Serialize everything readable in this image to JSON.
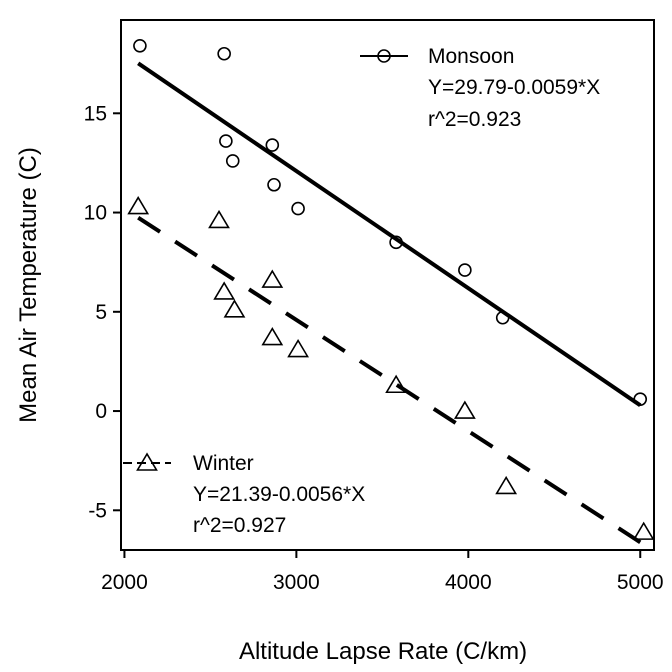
{
  "chart_data": {
    "type": "scatter",
    "xlabel": "Altitude Lapse Rate (C/km)",
    "ylabel": "Mean Air Temperature (C)",
    "xlim": [
      1980,
      5080
    ],
    "ylim": [
      -7.0,
      19.7
    ],
    "x_ticks": [
      2000,
      3000,
      4000,
      5000
    ],
    "y_ticks": [
      -5,
      0,
      5,
      10,
      15
    ],
    "legend_placement": [
      "top-right",
      "bottom-left"
    ],
    "grid": false,
    "series": [
      {
        "name": "Monsoon",
        "marker": "circle",
        "line_style": "solid",
        "color": "#000000",
        "fit": {
          "intercept": 29.79,
          "slope": -0.0059,
          "x_range": [
            2080,
            5000
          ]
        },
        "equation": "Y=29.79-0.0059*X",
        "r2": "r^2=0.923",
        "points": [
          {
            "x": 2090,
            "y": 18.4
          },
          {
            "x": 2580,
            "y": 18.0
          },
          {
            "x": 2590,
            "y": 13.6
          },
          {
            "x": 2630,
            "y": 12.6
          },
          {
            "x": 2860,
            "y": 13.4
          },
          {
            "x": 2870,
            "y": 11.4
          },
          {
            "x": 3010,
            "y": 10.2
          },
          {
            "x": 3580,
            "y": 8.5
          },
          {
            "x": 3980,
            "y": 7.1
          },
          {
            "x": 4200,
            "y": 4.7
          },
          {
            "x": 5000,
            "y": 0.6
          }
        ]
      },
      {
        "name": "Winter",
        "marker": "triangle",
        "line_style": "dashed",
        "color": "#000000",
        "fit": {
          "intercept": 21.39,
          "slope": -0.0056,
          "x_range": [
            2080,
            5000
          ]
        },
        "equation": "Y=21.39-0.0056*X",
        "r2": "r^2=0.927",
        "points": [
          {
            "x": 2080,
            "y": 10.3
          },
          {
            "x": 2550,
            "y": 9.6
          },
          {
            "x": 2580,
            "y": 6.0
          },
          {
            "x": 2640,
            "y": 5.1
          },
          {
            "x": 2860,
            "y": 6.6
          },
          {
            "x": 2860,
            "y": 3.7
          },
          {
            "x": 3010,
            "y": 3.1
          },
          {
            "x": 3580,
            "y": 1.3
          },
          {
            "x": 3980,
            "y": 0.0
          },
          {
            "x": 4220,
            "y": -3.8
          },
          {
            "x": 5020,
            "y": -6.1
          }
        ]
      }
    ]
  }
}
